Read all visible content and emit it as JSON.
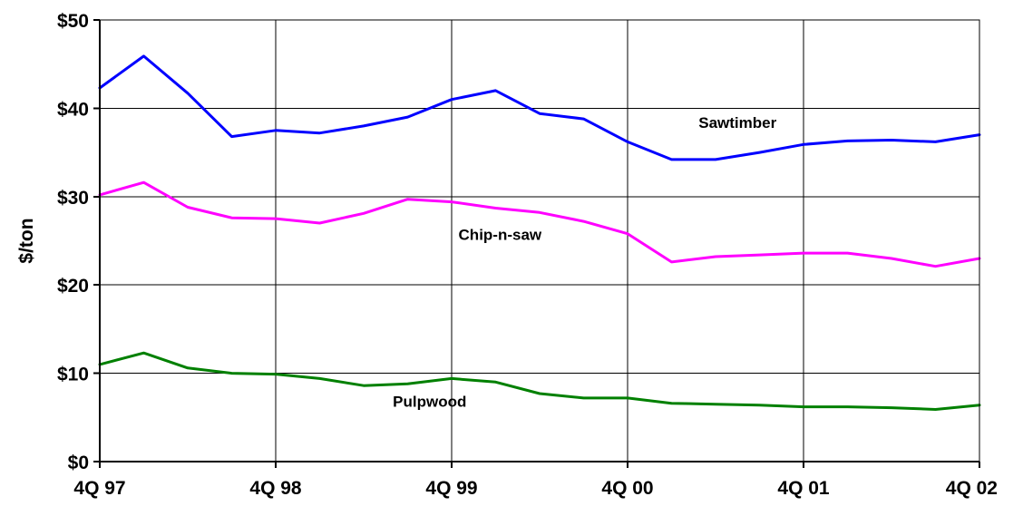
{
  "chart_data": {
    "type": "line",
    "title": "",
    "xlabel": "",
    "ylabel": "$/ton",
    "x_tick_labels": [
      "4Q 97",
      "4Q 98",
      "4Q 99",
      "4Q 00",
      "4Q 01",
      "4Q 02"
    ],
    "y_tick_labels": [
      "$0",
      "$10",
      "$20",
      "$30",
      "$40",
      "$50"
    ],
    "y_ticks": [
      0,
      10,
      20,
      30,
      40,
      50
    ],
    "ylim": [
      0,
      50
    ],
    "x_range": [
      0,
      20
    ],
    "grid": true,
    "legend": "none (series labeled inline on chart)",
    "x": [
      0,
      1,
      2,
      3,
      4,
      5,
      6,
      7,
      8,
      9,
      10,
      11,
      12,
      13,
      14,
      15,
      16,
      17,
      18,
      19,
      20
    ],
    "series": [
      {
        "name": "Sawtimber",
        "color": "#0000ff",
        "values": [
          42.3,
          45.9,
          41.7,
          36.8,
          37.5,
          37.2,
          38.0,
          39.0,
          41.0,
          42.0,
          39.4,
          38.8,
          36.2,
          34.2,
          34.2,
          35.0,
          35.9,
          36.3,
          36.4,
          36.2,
          37.0
        ]
      },
      {
        "name": "Chip-n-saw",
        "color": "#ff00ff",
        "values": [
          30.2,
          31.6,
          28.8,
          27.6,
          27.5,
          27.0,
          28.1,
          29.7,
          29.4,
          28.7,
          28.2,
          27.2,
          25.8,
          22.6,
          23.2,
          23.4,
          23.6,
          23.6,
          23.0,
          22.1,
          23.0
        ]
      },
      {
        "name": "Pulpwood",
        "color": "#008000",
        "values": [
          11.0,
          12.3,
          10.6,
          10.0,
          9.9,
          9.4,
          8.6,
          8.8,
          9.4,
          9.0,
          7.7,
          7.2,
          7.2,
          6.6,
          6.5,
          6.4,
          6.2,
          6.2,
          6.1,
          5.9,
          6.4
        ]
      }
    ],
    "annotations": [
      {
        "text": "Sawtimber",
        "x": 14.5,
        "y": 37.8
      },
      {
        "text": "Chip-n-saw",
        "x": 9.1,
        "y": 25.1
      },
      {
        "text": "Pulpwood",
        "x": 7.5,
        "y": 6.2
      }
    ]
  }
}
